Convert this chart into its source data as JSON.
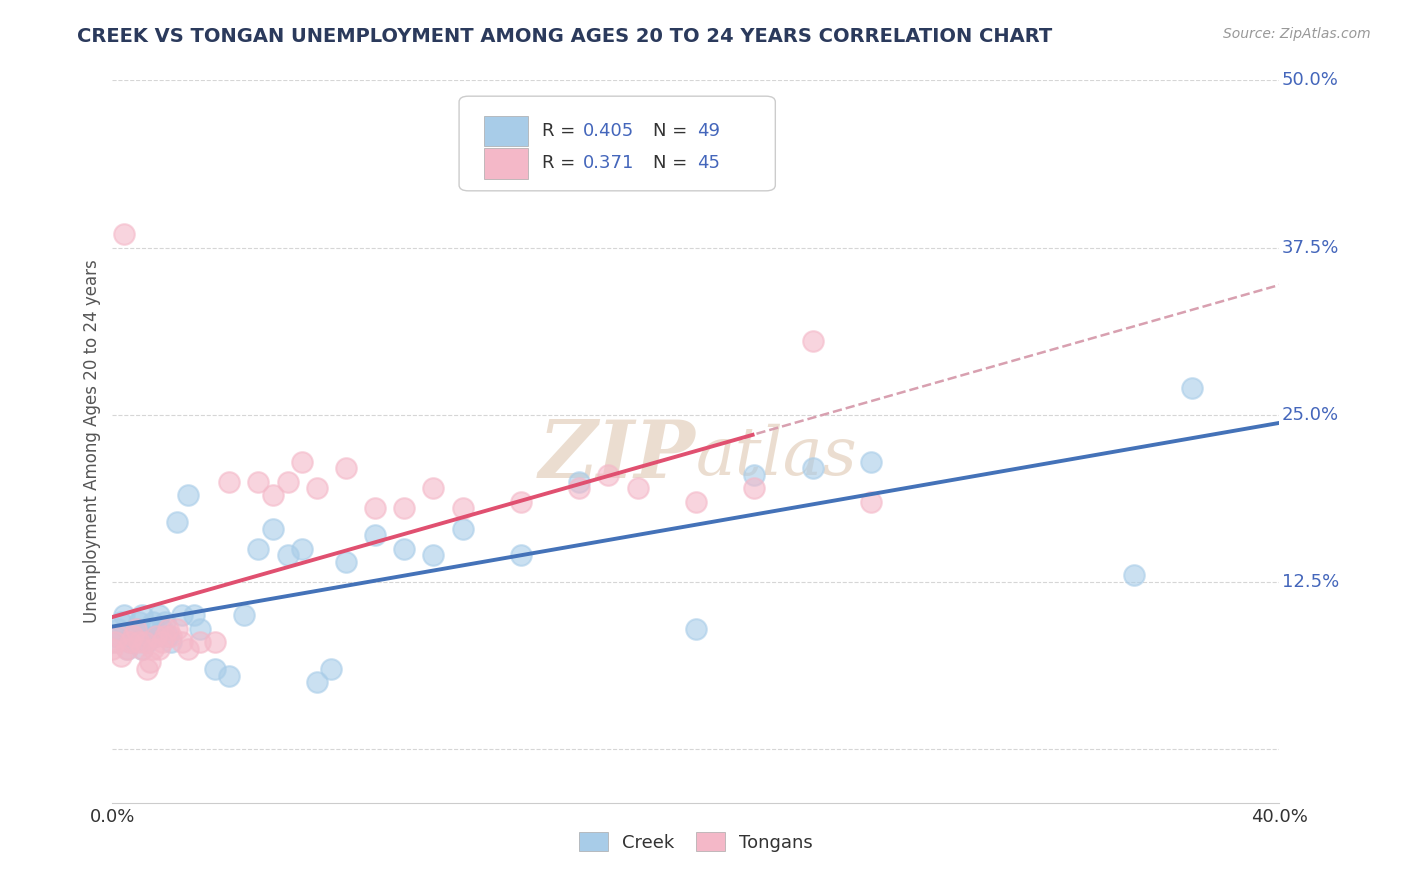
{
  "title": "CREEK VS TONGAN UNEMPLOYMENT AMONG AGES 20 TO 24 YEARS CORRELATION CHART",
  "source_text": "Source: ZipAtlas.com",
  "ylabel": "Unemployment Among Ages 20 to 24 years",
  "xlim": [
    0.0,
    0.4
  ],
  "ylim": [
    -0.04,
    0.5
  ],
  "xtick_positions": [
    0.0,
    0.4
  ],
  "xtick_labels": [
    "0.0%",
    "40.0%"
  ],
  "ytick_positions": [
    0.125,
    0.25,
    0.375,
    0.5
  ],
  "ytick_labels": [
    "12.5%",
    "25.0%",
    "37.5%",
    "50.0%"
  ],
  "creek_R": 0.405,
  "creek_N": 49,
  "tongan_R": 0.371,
  "tongan_N": 45,
  "creek_color": "#a8cce8",
  "tongan_color": "#f4b8c8",
  "creek_line_color": "#4472b8",
  "tongan_line_color": "#e05070",
  "tongan_dash_color": "#d8a0b0",
  "legend_R_color": "#4466bb",
  "legend_N_color": "#4466bb",
  "background_color": "#ffffff",
  "watermark_color": "#e8d8c8",
  "creek_x": [
    0.0,
    0.001,
    0.002,
    0.003,
    0.004,
    0.005,
    0.006,
    0.007,
    0.008,
    0.009,
    0.01,
    0.01,
    0.011,
    0.012,
    0.013,
    0.014,
    0.015,
    0.016,
    0.017,
    0.018,
    0.019,
    0.02,
    0.022,
    0.024,
    0.026,
    0.028,
    0.03,
    0.035,
    0.04,
    0.045,
    0.05,
    0.055,
    0.06,
    0.065,
    0.07,
    0.075,
    0.08,
    0.09,
    0.1,
    0.11,
    0.12,
    0.14,
    0.16,
    0.2,
    0.22,
    0.24,
    0.26,
    0.35,
    0.37
  ],
  "creek_y": [
    0.08,
    0.085,
    0.09,
    0.095,
    0.1,
    0.075,
    0.08,
    0.085,
    0.09,
    0.095,
    0.075,
    0.1,
    0.085,
    0.08,
    0.09,
    0.095,
    0.085,
    0.1,
    0.09,
    0.095,
    0.085,
    0.08,
    0.17,
    0.1,
    0.19,
    0.1,
    0.09,
    0.06,
    0.055,
    0.1,
    0.15,
    0.165,
    0.145,
    0.15,
    0.05,
    0.06,
    0.14,
    0.16,
    0.15,
    0.145,
    0.165,
    0.145,
    0.2,
    0.09,
    0.205,
    0.21,
    0.215,
    0.13,
    0.27
  ],
  "tongan_x": [
    0.0,
    0.001,
    0.002,
    0.003,
    0.004,
    0.005,
    0.006,
    0.007,
    0.008,
    0.009,
    0.01,
    0.011,
    0.012,
    0.013,
    0.014,
    0.015,
    0.016,
    0.017,
    0.018,
    0.019,
    0.02,
    0.022,
    0.024,
    0.026,
    0.03,
    0.035,
    0.04,
    0.05,
    0.055,
    0.06,
    0.065,
    0.07,
    0.08,
    0.09,
    0.1,
    0.11,
    0.12,
    0.14,
    0.16,
    0.17,
    0.18,
    0.2,
    0.22,
    0.24,
    0.26
  ],
  "tongan_y": [
    0.075,
    0.08,
    0.085,
    0.07,
    0.385,
    0.075,
    0.08,
    0.085,
    0.09,
    0.08,
    0.075,
    0.08,
    0.06,
    0.065,
    0.075,
    0.085,
    0.075,
    0.08,
    0.085,
    0.09,
    0.085,
    0.09,
    0.08,
    0.075,
    0.08,
    0.08,
    0.2,
    0.2,
    0.19,
    0.2,
    0.215,
    0.195,
    0.21,
    0.18,
    0.18,
    0.195,
    0.18,
    0.185,
    0.195,
    0.205,
    0.195,
    0.185,
    0.195,
    0.305,
    0.185
  ]
}
